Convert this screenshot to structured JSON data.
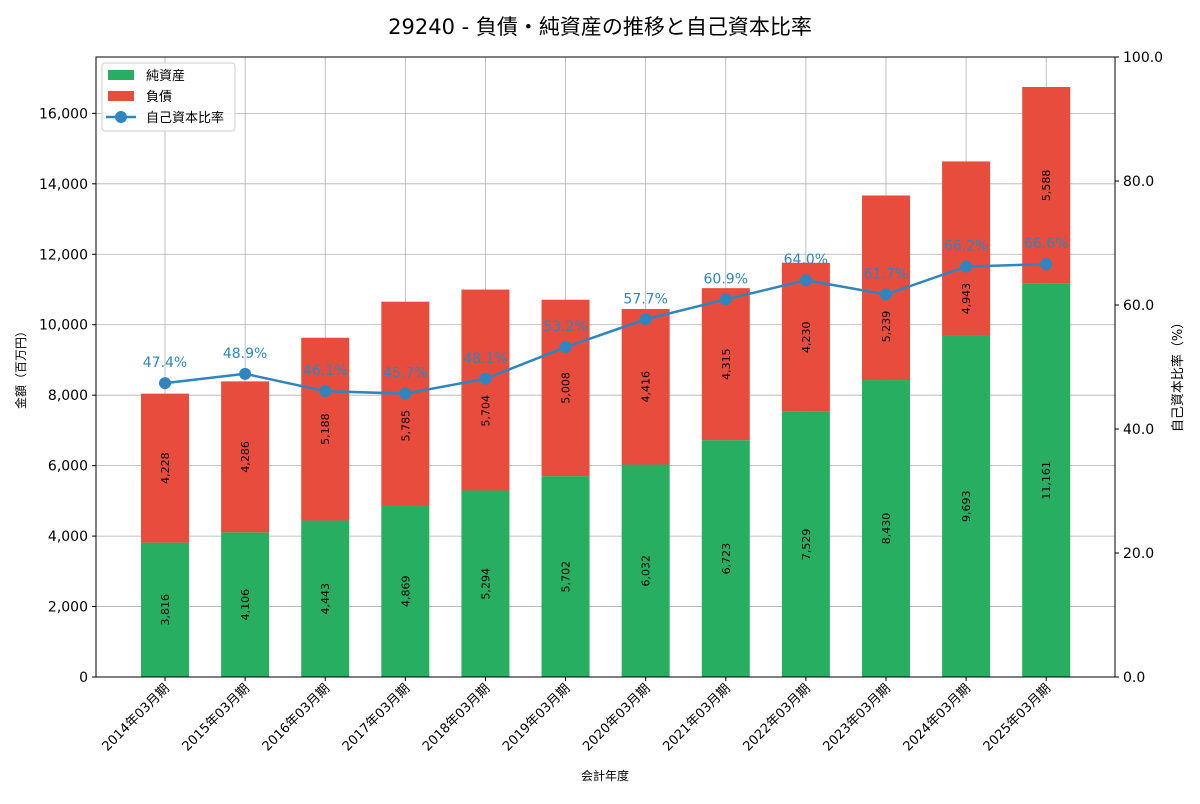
{
  "chart_data": {
    "type": "bar",
    "title": "29240 - 負債・純資産の推移と自己資本比率",
    "xlabel": "会計年度",
    "ylabel": "金額（百万円）",
    "y2label": "自己資本比率（%）",
    "categories": [
      "2014年03月期",
      "2015年03月期",
      "2016年03月期",
      "2017年03月期",
      "2018年03月期",
      "2019年03月期",
      "2020年03月期",
      "2021年03月期",
      "2022年03月期",
      "2023年03月期",
      "2024年03月期",
      "2025年03月期"
    ],
    "series": [
      {
        "name": "純資産",
        "type": "bar",
        "color": "#27ae60",
        "values": [
          3816,
          4106,
          4443,
          4869,
          5294,
          5702,
          6032,
          6723,
          7529,
          8430,
          9693,
          11161
        ],
        "labels": [
          "3,816",
          "4,106",
          "4,443",
          "4,869",
          "5,294",
          "5,702",
          "6,032",
          "6,723",
          "7,529",
          "8,430",
          "9,693",
          "11,161"
        ]
      },
      {
        "name": "負債",
        "type": "bar",
        "color": "#e74c3c",
        "values": [
          4228,
          4286,
          5188,
          5785,
          5704,
          5008,
          4416,
          4315,
          4230,
          5239,
          4943,
          5588
        ],
        "labels": [
          "4,228",
          "4,286",
          "5,188",
          "5,785",
          "5,704",
          "5,008",
          "4,416",
          "4,315",
          "4,230",
          "5,239",
          "4,943",
          "5,588"
        ]
      },
      {
        "name": "自己資本比率",
        "type": "line",
        "axis": "right",
        "color": "#2e86c1",
        "values": [
          47.4,
          48.9,
          46.1,
          45.7,
          48.1,
          53.2,
          57.7,
          60.9,
          64.0,
          61.7,
          66.2,
          66.6
        ],
        "labels": [
          "47.4%",
          "48.9%",
          "46.1%",
          "45.7%",
          "48.1%",
          "53.2%",
          "57.7%",
          "60.9%",
          "64.0%",
          "61.7%",
          "66.2%",
          "66.6%"
        ]
      }
    ],
    "ylim": [
      0,
      17600
    ],
    "y2lim": [
      0,
      100
    ],
    "yticks": [
      0,
      2000,
      4000,
      6000,
      8000,
      10000,
      12000,
      14000,
      16000
    ],
    "ytick_labels": [
      "0",
      "2,000",
      "4,000",
      "6,000",
      "8,000",
      "10,000",
      "12,000",
      "14,000",
      "16,000"
    ],
    "y2ticks": [
      0,
      20,
      40,
      60,
      80,
      100
    ],
    "y2tick_labels": [
      "0.0",
      "20.0",
      "40.0",
      "60.0",
      "80.0",
      "100.0"
    ],
    "grid": true,
    "legend": "top-left"
  }
}
